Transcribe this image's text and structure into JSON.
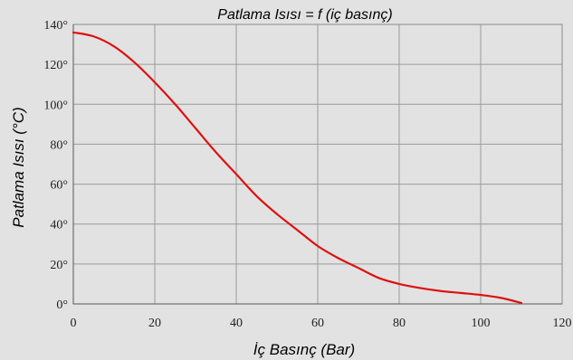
{
  "chart_data": {
    "type": "line",
    "title": "Patlama Isısı = f (iç basınç)",
    "xlabel": "İç Basınç (Bar)",
    "ylabel": "Patlama Isısı (°C)",
    "xlim": [
      0,
      120
    ],
    "ylim": [
      0,
      140
    ],
    "x_ticks": [
      0,
      20,
      40,
      60,
      80,
      100,
      120
    ],
    "x_tick_labels": [
      "0",
      "20",
      "40",
      "60",
      "80",
      "100",
      "120"
    ],
    "y_ticks": [
      0,
      20,
      40,
      60,
      80,
      100,
      120,
      140
    ],
    "y_tick_labels": [
      "0°",
      "20°",
      "40°",
      "60°",
      "80°",
      "100°",
      "120°",
      "140°"
    ],
    "grid": true,
    "colors": {
      "series": "#dd1111",
      "background": "#e2e2e2",
      "grid": "#9a9a9a"
    },
    "series": [
      {
        "x": [
          0,
          5,
          10,
          15,
          20,
          25,
          30,
          35,
          40,
          45,
          50,
          55,
          60,
          65,
          70,
          75,
          80,
          85,
          90,
          95,
          100,
          105,
          110
        ],
        "y": [
          136,
          134,
          129,
          121,
          111,
          100,
          88,
          76,
          65,
          54,
          45,
          37,
          29,
          23,
          18,
          13,
          10,
          8,
          6.5,
          5.5,
          4.5,
          3,
          0.5
        ]
      }
    ]
  }
}
